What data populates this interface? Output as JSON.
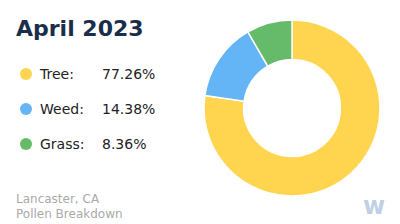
{
  "chart_data": {
    "type": "donut",
    "title": "April 2023",
    "categories": [
      "Tree:",
      "Weed:",
      "Grass:"
    ],
    "values": [
      77.26,
      14.38,
      8.36
    ],
    "value_labels": [
      "77.26%",
      "14.38%",
      "8.36%"
    ],
    "colors": [
      "#FFD54F",
      "#64B5F6",
      "#66BB6A"
    ],
    "legend": "left",
    "annotations": [
      "Lancaster, CA\nPollen Breakdown",
      "w"
    ]
  }
}
